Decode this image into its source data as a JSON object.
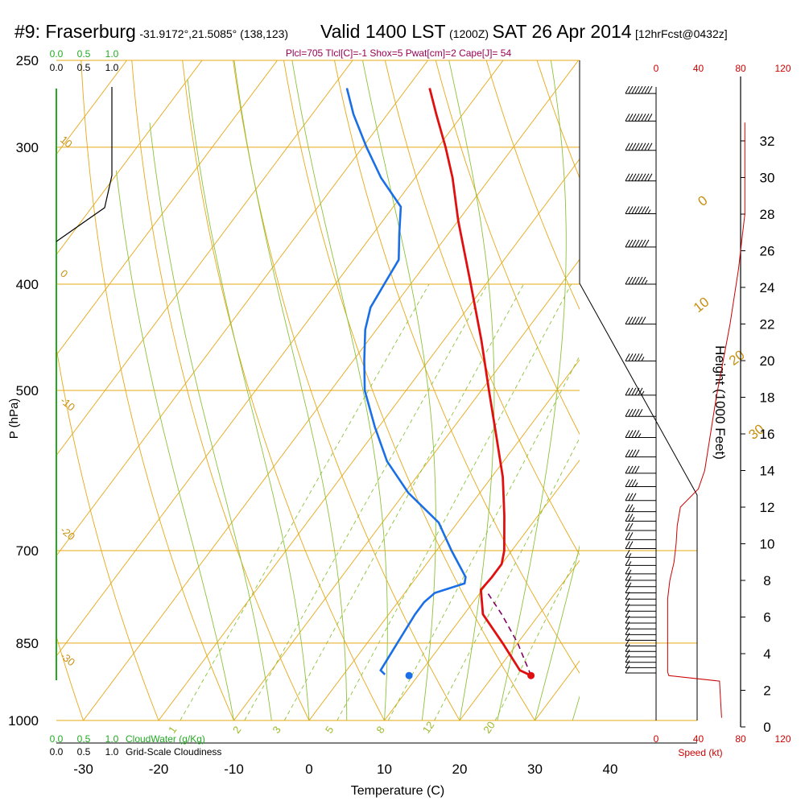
{
  "header": {
    "station": "#9: Fraserburg",
    "coords": "-31.9172°,21.5085° (138,123)",
    "valid_time": "Valid 1400 LST",
    "zulu": "(1200Z)",
    "date": "SAT 26 Apr 2014",
    "forecast": "[12hrFcst@0432z]"
  },
  "stats_line": "Plcl=705 Tlcl[C]=-1 Shox=5 Pwat[cm]=2 Cape[J]= 54",
  "colors": {
    "isotherm": "#e6a817",
    "isobar": "#e6a817",
    "dry_adiabat": "#e6a817",
    "moist_adiabat": "#8cc23a",
    "mixing_ratio": "#8cc23a",
    "temperature": "#e01010",
    "dewpoint": "#1a6fe6",
    "parcel": "#800060",
    "wind_speed": "#cc0000",
    "cloud_water": "#22aa22",
    "cloudiness": "#000000",
    "stats": "#990055",
    "labels": "#c89010"
  },
  "chart_data": {
    "type": "skew-t",
    "xlabel": "Temperature (C)",
    "ylabel": "P (hPa)",
    "height_axis_label": "Height (1000 Feet)",
    "temperature_ticks": [
      -30,
      -20,
      -10,
      0,
      10,
      20,
      30,
      40
    ],
    "pressure_ticks": [
      250,
      300,
      400,
      500,
      700,
      850,
      1000
    ],
    "isobars": [
      250,
      300,
      400,
      500,
      700,
      850,
      1000
    ],
    "pressure_range": [
      250,
      1000
    ],
    "temperature_range": [
      -34,
      36
    ],
    "height_ticks": [
      0,
      2,
      4,
      6,
      8,
      10,
      12,
      14,
      16,
      18,
      20,
      22,
      24,
      26,
      28,
      30,
      32
    ],
    "height_range_kft": [
      0,
      34
    ],
    "speed_ticks_bottom": [
      0,
      40,
      80,
      120
    ],
    "speed_ticks_top": [
      0,
      40,
      80,
      120
    ],
    "speed_label": "Speed (kt)",
    "isotherm_labels": [
      {
        "text": "0",
        "temp": 0,
        "p": 340
      },
      {
        "text": "10",
        "temp": 10,
        "p": 425
      },
      {
        "text": "20",
        "temp": 20,
        "p": 475
      },
      {
        "text": "30",
        "temp": 30,
        "p": 555
      }
    ],
    "dry_adiabat_labels": [
      {
        "text": "10",
        "p": 296
      },
      {
        "text": "0",
        "p": 392
      },
      {
        "text": "-10",
        "p": 512
      },
      {
        "text": "-20",
        "p": 672
      },
      {
        "text": "-30",
        "p": 875
      }
    ],
    "mixing_ratio_labels": [
      {
        "text": "1",
        "mr": 1
      },
      {
        "text": "2",
        "mr": 2
      },
      {
        "text": "3",
        "mr": 3
      },
      {
        "text": "5",
        "mr": 5
      },
      {
        "text": "8",
        "mr": 8
      },
      {
        "text": "12",
        "mr": 12
      },
      {
        "text": "20",
        "mr": 20
      }
    ],
    "cloud_water_scale": {
      "label": "CloudWater (g/Kg)",
      "ticks": [
        "0.0",
        "0.5",
        "1.0"
      ]
    },
    "cloudiness_scale": {
      "label": "Grid-Scale Cloudiness",
      "ticks": [
        "0.0",
        "0.5",
        "1.0"
      ]
    },
    "series": [
      {
        "name": "Temperature",
        "points": [
          [
            910,
            25.0
          ],
          [
            900,
            23.0
          ],
          [
            850,
            18.0
          ],
          [
            800,
            12.5
          ],
          [
            760,
            9.8
          ],
          [
            740,
            10.0
          ],
          [
            720,
            10.0
          ],
          [
            700,
            9.0
          ],
          [
            650,
            5.5
          ],
          [
            600,
            1.5
          ],
          [
            550,
            -3.5
          ],
          [
            500,
            -9.0
          ],
          [
            450,
            -15.0
          ],
          [
            400,
            -22.0
          ],
          [
            350,
            -30.0
          ],
          [
            320,
            -35.0
          ],
          [
            300,
            -39.0
          ],
          [
            280,
            -43.5
          ],
          [
            265,
            -47.0
          ]
        ]
      },
      {
        "name": "Dewpoint",
        "points": [
          [
            908,
            5.5
          ],
          [
            900,
            4.5
          ],
          [
            850,
            4.0
          ],
          [
            800,
            3.5
          ],
          [
            780,
            3.5
          ],
          [
            765,
            4.0
          ],
          [
            750,
            7.0
          ],
          [
            740,
            6.5
          ],
          [
            700,
            2.0
          ],
          [
            660,
            -2.5
          ],
          [
            620,
            -9.5
          ],
          [
            580,
            -15.5
          ],
          [
            540,
            -20.5
          ],
          [
            500,
            -25.5
          ],
          [
            470,
            -28.5
          ],
          [
            440,
            -31.5
          ],
          [
            420,
            -33.0
          ],
          [
            400,
            -33.5
          ],
          [
            380,
            -34.0
          ],
          [
            360,
            -36.5
          ],
          [
            340,
            -39.0
          ],
          [
            320,
            -44.5
          ],
          [
            300,
            -49.5
          ],
          [
            280,
            -54.5
          ],
          [
            265,
            -58.0
          ]
        ]
      },
      {
        "name": "Parcel",
        "points": [
          [
            910,
            25.0
          ],
          [
            850,
            20.0
          ],
          [
            800,
            15.0
          ],
          [
            765,
            11.0
          ]
        ]
      }
    ],
    "surface_temperature": {
      "p": 910,
      "temp": 25.0
    },
    "surface_dewpoint": {
      "p": 910,
      "temp": 8.8
    },
    "wind_speed_profile_kt": [
      [
        0.5,
        62
      ],
      [
        2.5,
        60
      ],
      [
        2.8,
        12
      ],
      [
        3.0,
        11
      ],
      [
        5.0,
        11
      ],
      [
        7.0,
        11
      ],
      [
        8.0,
        13
      ],
      [
        9.0,
        17
      ],
      [
        10.0,
        19
      ],
      [
        11.0,
        20
      ],
      [
        12.0,
        23
      ],
      [
        13.0,
        40
      ],
      [
        14.0,
        46
      ],
      [
        18.0,
        57
      ],
      [
        22.0,
        70
      ],
      [
        25.0,
        78
      ],
      [
        27.0,
        82
      ],
      [
        28.0,
        84
      ],
      [
        30.0,
        84
      ],
      [
        33.0,
        84
      ]
    ],
    "wind_barbs": [
      {
        "p": 905,
        "spd": 10
      },
      {
        "p": 895,
        "spd": 10
      },
      {
        "p": 885,
        "spd": 10
      },
      {
        "p": 875,
        "spd": 10
      },
      {
        "p": 865,
        "spd": 10
      },
      {
        "p": 855,
        "spd": 10
      },
      {
        "p": 845,
        "spd": 10
      },
      {
        "p": 835,
        "spd": 10
      },
      {
        "p": 825,
        "spd": 10
      },
      {
        "p": 815,
        "spd": 10
      },
      {
        "p": 805,
        "spd": 10
      },
      {
        "p": 795,
        "spd": 10
      },
      {
        "p": 785,
        "spd": 10
      },
      {
        "p": 775,
        "spd": 10
      },
      {
        "p": 765,
        "spd": 10
      },
      {
        "p": 755,
        "spd": 15
      },
      {
        "p": 745,
        "spd": 15
      },
      {
        "p": 735,
        "spd": 15
      },
      {
        "p": 722,
        "spd": 15
      },
      {
        "p": 710,
        "spd": 15
      },
      {
        "p": 697,
        "spd": 20
      },
      {
        "p": 684,
        "spd": 20
      },
      {
        "p": 671,
        "spd": 20
      },
      {
        "p": 658,
        "spd": 25
      },
      {
        "p": 645,
        "spd": 25
      },
      {
        "p": 630,
        "spd": 30
      },
      {
        "p": 612,
        "spd": 35
      },
      {
        "p": 595,
        "spd": 40
      },
      {
        "p": 575,
        "spd": 40
      },
      {
        "p": 552,
        "spd": 45
      },
      {
        "p": 528,
        "spd": 50
      },
      {
        "p": 505,
        "spd": 55
      },
      {
        "p": 470,
        "spd": 55
      },
      {
        "p": 435,
        "spd": 60
      },
      {
        "p": 400,
        "spd": 65
      },
      {
        "p": 370,
        "spd": 70
      },
      {
        "p": 345,
        "spd": 75
      },
      {
        "p": 322,
        "spd": 80
      },
      {
        "p": 302,
        "spd": 80
      },
      {
        "p": 284,
        "spd": 80
      },
      {
        "p": 268,
        "spd": 80
      }
    ]
  }
}
